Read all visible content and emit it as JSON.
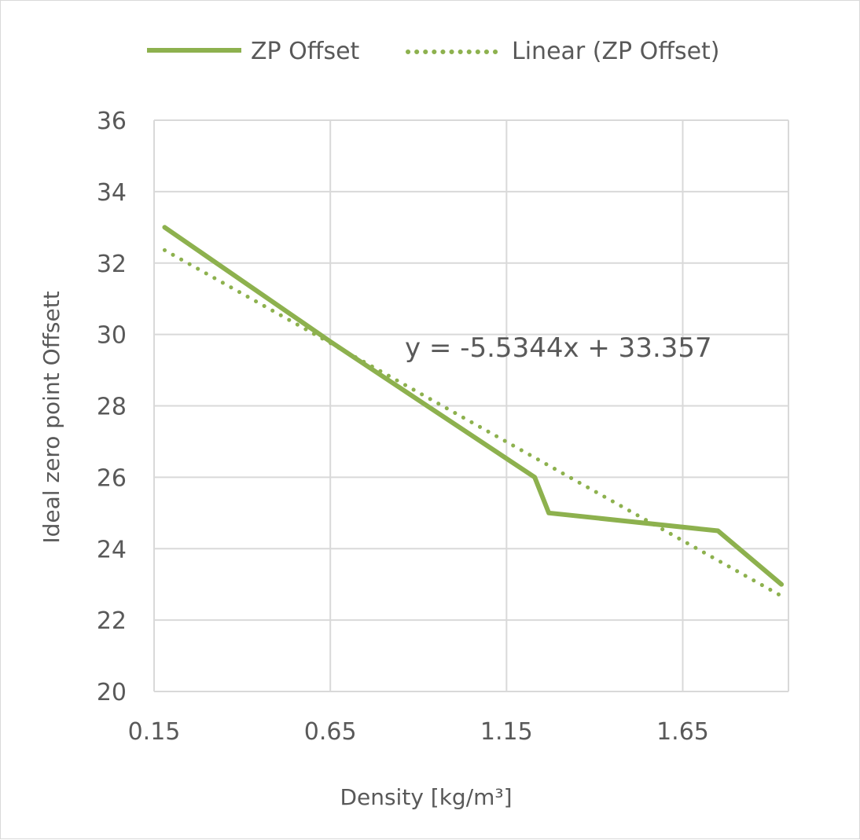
{
  "chart_data": {
    "type": "line",
    "xlabel": "Density [kg/m³]",
    "ylabel": "Ideal zero point Offsett",
    "xlim": [
      0.15,
      1.95
    ],
    "ylim": [
      20,
      36
    ],
    "x_ticks": [
      "0.15",
      "0.65",
      "1.15",
      "1.65"
    ],
    "y_ticks": [
      "20",
      "22",
      "24",
      "26",
      "28",
      "30",
      "32",
      "34",
      "36"
    ],
    "grid": true,
    "legend_position": "top",
    "colors": {
      "series": "#8db14e",
      "grid": "#d9d9d9",
      "text": "#595959"
    },
    "series": [
      {
        "name": "ZP Offset",
        "style": "solid",
        "x": [
          0.18,
          0.65,
          1.23,
          1.27,
          1.75,
          1.93
        ],
        "y": [
          33.0,
          29.8,
          26.0,
          25.0,
          24.5,
          23.0
        ]
      }
    ],
    "trendline": {
      "name": "Linear (ZP Offset)",
      "style": "dotted",
      "slope": -5.5344,
      "intercept": 33.357,
      "x_range": [
        0.18,
        1.93
      ],
      "equation_label": "y = -5.5344x + 33.357"
    }
  }
}
